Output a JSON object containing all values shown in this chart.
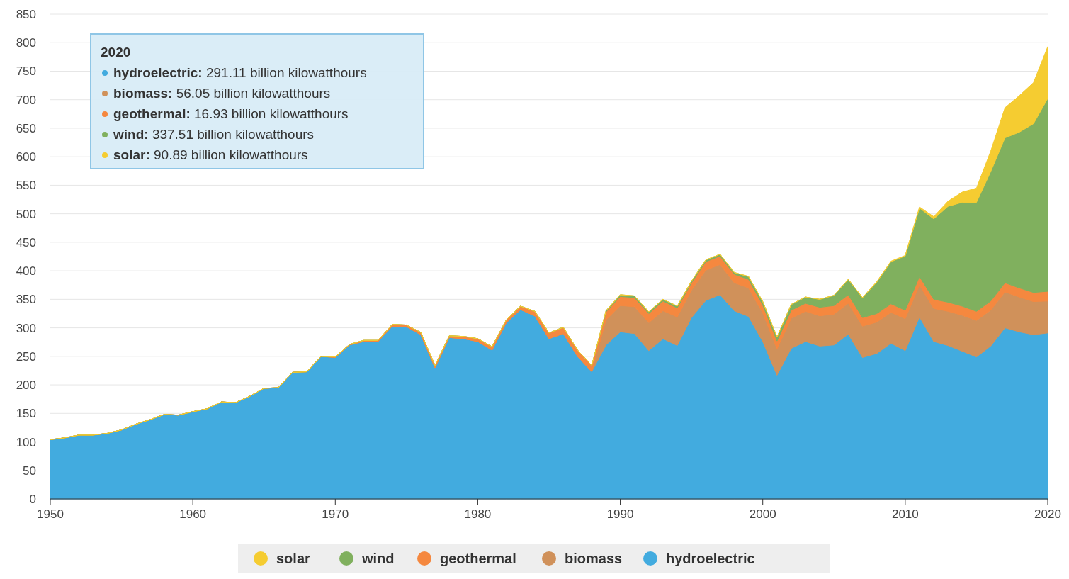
{
  "chart_data": {
    "type": "area",
    "stacked": true,
    "x": [
      1950,
      1951,
      1952,
      1953,
      1954,
      1955,
      1956,
      1957,
      1958,
      1959,
      1960,
      1961,
      1962,
      1963,
      1964,
      1965,
      1966,
      1967,
      1968,
      1969,
      1970,
      1971,
      1972,
      1973,
      1974,
      1975,
      1976,
      1977,
      1978,
      1979,
      1980,
      1981,
      1982,
      1983,
      1984,
      1985,
      1986,
      1987,
      1988,
      1989,
      1990,
      1991,
      1992,
      1993,
      1994,
      1995,
      1996,
      1997,
      1998,
      1999,
      2000,
      2001,
      2002,
      2003,
      2004,
      2005,
      2006,
      2007,
      2008,
      2009,
      2010,
      2011,
      2012,
      2013,
      2014,
      2015,
      2016,
      2017,
      2018,
      2019,
      2020
    ],
    "series": [
      {
        "name": "hydroelectric",
        "color": "#42abdf",
        "values": [
          104,
          107,
          112,
          112,
          115,
          121,
          131,
          139,
          148,
          147,
          153,
          158,
          170,
          169,
          180,
          194,
          195,
          222,
          223,
          250,
          248,
          270,
          276,
          276,
          303,
          302,
          288,
          230,
          283,
          281,
          276,
          261,
          309,
          332,
          321,
          281,
          290,
          250,
          223,
          270,
          293,
          290,
          260,
          281,
          269,
          318,
          348,
          358,
          330,
          320,
          276,
          217,
          264,
          276,
          268,
          270,
          289,
          248,
          255,
          273,
          260,
          319,
          276,
          269,
          259,
          249,
          268,
          300,
          293,
          288,
          291
        ]
      },
      {
        "name": "biomass",
        "color": "#d0915a",
        "values": [
          0,
          0,
          0,
          0,
          0,
          0,
          0,
          0,
          0,
          0,
          0,
          0,
          0,
          0,
          0,
          0,
          0,
          0,
          0,
          0,
          0,
          0,
          0,
          0,
          0,
          0,
          0,
          0,
          0,
          0,
          0,
          0,
          0,
          0,
          0,
          0,
          0,
          0,
          0,
          44,
          46,
          47,
          49,
          49,
          50,
          48,
          53,
          53,
          49,
          50,
          50,
          46,
          53,
          53,
          53,
          54,
          54,
          55,
          55,
          54,
          56,
          56,
          58,
          60,
          63,
          64,
          63,
          63,
          61,
          58,
          56
        ]
      },
      {
        "name": "geothermal",
        "color": "#f5883f",
        "values": [
          0,
          0,
          0,
          0,
          0,
          0,
          0,
          0,
          0,
          0,
          0,
          0,
          0,
          0,
          0,
          0,
          0,
          0,
          0,
          0,
          1,
          1,
          2,
          2,
          3,
          3,
          4,
          4,
          3,
          4,
          5,
          6,
          5,
          6,
          8,
          10,
          11,
          11,
          11,
          14,
          16,
          16,
          16,
          17,
          16,
          13,
          15,
          15,
          15,
          15,
          14,
          14,
          14,
          14,
          15,
          15,
          15,
          15,
          15,
          15,
          15,
          15,
          16,
          16,
          16,
          16,
          16,
          16,
          16,
          16,
          17
        ]
      },
      {
        "name": "wind",
        "color": "#80b05e",
        "values": [
          0,
          0,
          0,
          0,
          0,
          0,
          0,
          0,
          0,
          0,
          0,
          0,
          0,
          0,
          0,
          0,
          0,
          0,
          0,
          0,
          0,
          0,
          0,
          0,
          0,
          0,
          0,
          0,
          0,
          0,
          0,
          0,
          0,
          0,
          0,
          0,
          0,
          0,
          0,
          2,
          3,
          3,
          3,
          3,
          3,
          3,
          3,
          3,
          3,
          5,
          6,
          7,
          10,
          11,
          14,
          18,
          27,
          35,
          55,
          74,
          95,
          120,
          141,
          168,
          182,
          191,
          227,
          254,
          273,
          296,
          338
        ]
      },
      {
        "name": "solar",
        "color": "#f5cc31",
        "values": [
          0,
          0,
          0,
          0,
          0,
          0,
          0,
          0,
          0,
          0,
          0,
          0,
          0,
          0,
          0,
          0,
          0,
          0,
          0,
          0,
          0,
          0,
          0,
          0,
          0,
          0,
          0,
          0,
          0,
          0,
          0,
          0,
          0,
          0,
          0,
          0,
          0,
          0,
          0,
          0,
          0,
          0,
          0,
          0,
          0,
          0,
          0,
          0,
          0,
          0,
          0,
          0,
          0,
          0,
          0,
          0,
          0,
          0,
          1,
          1,
          1,
          2,
          4,
          9,
          18,
          25,
          36,
          53,
          64,
          72,
          91
        ]
      }
    ],
    "xlim": [
      1950,
      2020
    ],
    "xticks": [
      1950,
      1960,
      1970,
      1980,
      1990,
      2000,
      2010,
      2020
    ],
    "ylim": [
      0,
      850
    ],
    "yticks": [
      0,
      50,
      100,
      150,
      200,
      250,
      300,
      350,
      400,
      450,
      500,
      550,
      600,
      650,
      700,
      750,
      800,
      850
    ],
    "grid": "y",
    "legend": "bottom",
    "annotations": [
      "2020",
      "hydroelectric: 291.11 billion kilowatthours",
      "biomass: 56.05 billion kilowatthours",
      "geothermal: 16.93 billion kilowatthours",
      "wind: 337.51 billion kilowatthours",
      "solar: 90.89 billion kilowatthours"
    ]
  }
}
